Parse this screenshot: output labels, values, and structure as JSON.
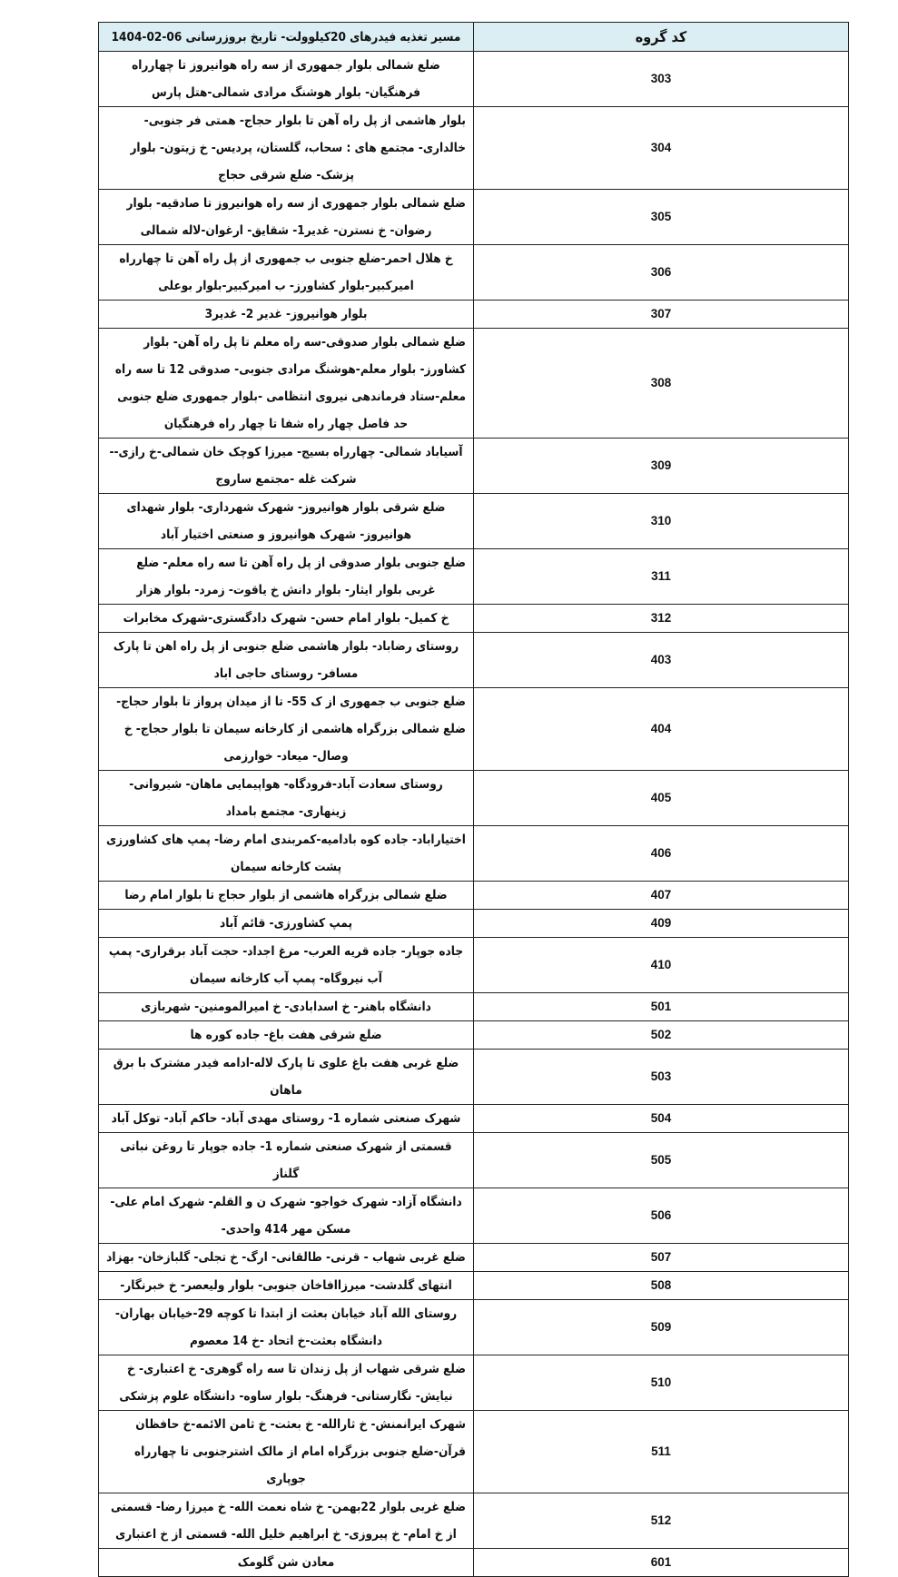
{
  "table": {
    "header": {
      "code": "کد گروه",
      "route": "مسیر تغذیه فیدرهای 20کیلوولت- تاریخ بروزرسانی 06-02-1404"
    },
    "header_bg": "#dbeef4",
    "rows": [
      {
        "code": "303",
        "route": "ضلع شمالی بلوار جمهوری از سه راه هوانیروز تا چهارراه فرهنگیان- بلوار هوشنگ مرادی شمالی-هتل پارس"
      },
      {
        "code": "304",
        "route": "بلوار هاشمی از پل راه آهن تا بلوار حجاج- همتی فر جنوبی-خالداری- مجتمع های : سحاب، گلستان، پردیس- خ زیتون- بلوار پزشک- ضلع شرقی حجاج"
      },
      {
        "code": "305",
        "route": "ضلع شمالی بلوار جمهوری از سه راه هوانیروز تا صادقیه- بلوار رضوان- خ نسترن- غدیر1- شقایق- ارغوان-لاله شمالی"
      },
      {
        "code": "306",
        "route": "خ هلال احمر-ضلع جنوبی ب جمهوری از پل راه آهن تا چهارراه امیرکبیر-بلوار کشاورز- ب امیرکبیر-بلوار بوعلی"
      },
      {
        "code": "307",
        "route": "بلوار هوانیروز- غدیر 2- غدیر3"
      },
      {
        "code": "308",
        "route": "ضلع شمالی بلوار صدوقی-سه راه معلم تا پل راه آهن- بلوار کشاورز- بلوار معلم-هوشنگ مرادی جنوبی- صدوقی 12 تا سه راه معلم-ستاد فرماندهی نیروی انتظامی -بلوار جمهوری ضلع جنوبی حد فاصل چهار راه شفا تا چهار راه فرهنگیان"
      },
      {
        "code": "309",
        "route": "آسیاباد شمالی- چهارراه بسیج- میرزا کوچک خان شمالی-خ رازی--شرکت غله -مجتمع ساروج"
      },
      {
        "code": "310",
        "route": "ضلع شرقی بلوار هوانیروز- شهرک شهرداری- بلوار شهدای هوانیروز- شهرک هوانیروز و صنعتی اختیار آباد"
      },
      {
        "code": "311",
        "route": "ضلع جنوبی بلوار صدوقی از پل راه آهن تا سه راه معلم- ضلع غربی بلوار ایثار- بلوار دانش خ یاقوت- زمرد- بلوار هزار"
      },
      {
        "code": "312",
        "route": "خ کمیل- بلوار امام حسن- شهرک دادگستری-شهرک مخابرات"
      },
      {
        "code": "403",
        "route": "روستای رضاباد- بلوار هاشمی ضلع جنوبی از پل راه اهن تا پارک مسافر- روستای حاجی اباد"
      },
      {
        "code": "404",
        "route": "ضلع جنوبی ب جمهوری از ک 55- تا از میدان پرواز تا بلوار حجاج- ضلع شمالی بزرگراه هاشمی از کارخانه سیمان تا بلوار حجاج- خ وصال- میعاد- خوارزمی"
      },
      {
        "code": "405",
        "route": "روستای سعادت آباد-فرودگاه- هواپیمایی ماهان- شیروانی-زینهاری- مجتمع بامداد"
      },
      {
        "code": "406",
        "route": "اختیاراباد- جاده کوه بادامیه-کمربندی امام رضا- پمپ های کشاورزی پشت کارخانه سیمان"
      },
      {
        "code": "407",
        "route": "ضلع شمالی بزرگراه هاشمی از بلوار حجاج تا بلوار امام رضا"
      },
      {
        "code": "409",
        "route": "پمپ کشاورزی- قائم آباد"
      },
      {
        "code": "410",
        "route": "جاده جوپار- جاده قریه العرب- مرغ اجداد- حجت آباد برقراری- پمپ آب نیروگاه- پمپ آب کارخانه سیمان"
      },
      {
        "code": "501",
        "route": "دانشگاه باهنر- خ اسدابادی- خ امیرالمومنین- شهربازی"
      },
      {
        "code": "502",
        "route": "ضلع شرقی هفت باغ- جاده کوره ها"
      },
      {
        "code": "503",
        "route": "ضلع غربی هفت باغ علوی تا پارک لاله-ادامه فیدر مشترک با برق ماهان"
      },
      {
        "code": "504",
        "route": "شهرک صنعتی شماره 1- روستای مهدی آباد- حاکم آباد- توکل آباد"
      },
      {
        "code": "505",
        "route": "قسمتی از شهرک صنعتی شماره 1- جاده جوپار تا روغن نباتی گلناز"
      },
      {
        "code": "506",
        "route": "دانشگاه آزاد- شهرک خواجو- شهرک ن و القلم- شهرک امام علی- مسکن مهر 414 واحدی-"
      },
      {
        "code": "507",
        "route": "ضلع غربی شهاب - قرنی- طالقانی- ارگ- خ تجلی- گلبازخان- بهزاد"
      },
      {
        "code": "508",
        "route": "انتهای گلدشت- میرزاافاخان جنوبی-  بلوار ولیعصر- خ خبرنگار-"
      },
      {
        "code": "509",
        "route": "روستای الله آباد خیابان بعثت از ابتدا تا کوچه 29-خیابان بهاران- دانشگاه بعثت-خ اتحاد -خ 14 معصوم"
      },
      {
        "code": "510",
        "route": "ضلع شرقی شهاب از پل زندان تا سه راه گوهری- خ اعتباری- خ نیایش- نگارستانی- فرهنگ- بلوار ساوه- دانشگاه علوم پزشکی"
      },
      {
        "code": "511",
        "route": "شهرک ایرانمنش- خ ثارالله- خ بعثت- خ ثامن الائمه-خ حافظان قرآن-ضلع جنوبی بزرگراه امام از مالک اشترجنوبی تا چهارراه جوپاری"
      },
      {
        "code": "512",
        "route": "ضلع غربی بلوار 22بهمن- خ شاه نعمت الله- خ میرزا رضا- قسمتی از خ امام- خ پیروزی- خ ابراهیم خلیل الله- قسمتی از خ اعتباری"
      },
      {
        "code": "601",
        "route": "معادن شن گلومک"
      }
    ]
  }
}
